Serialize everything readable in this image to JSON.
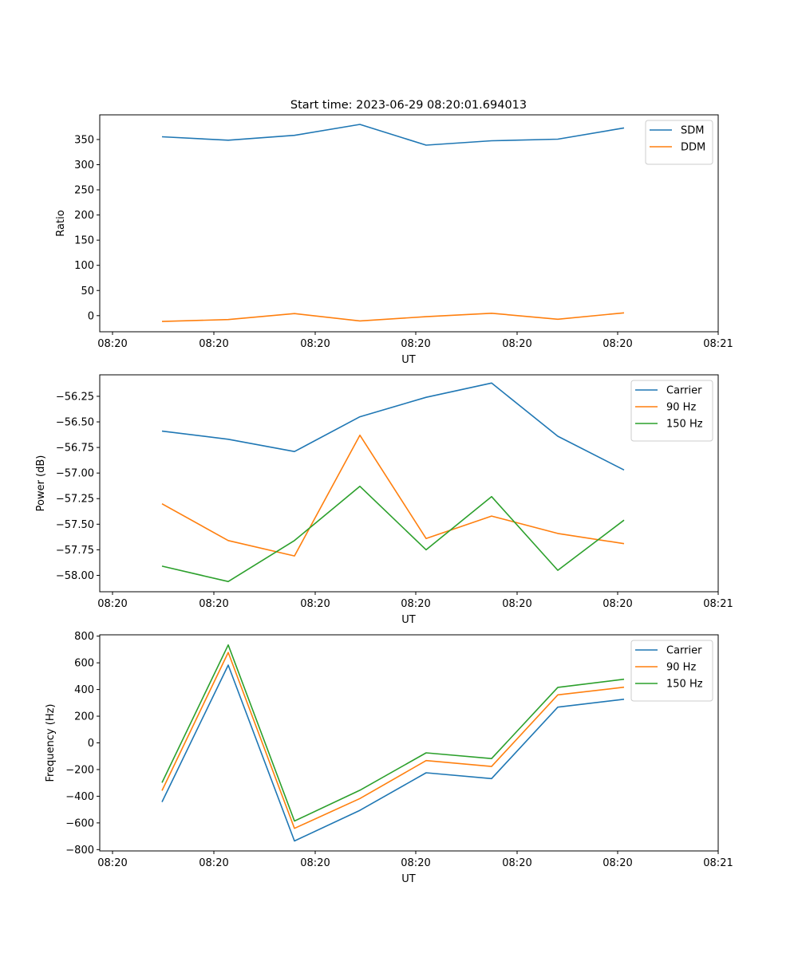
{
  "figure_title": "Start time: 2023-06-29 08:20:01.694013",
  "colors": {
    "blue": "#1f77b4",
    "orange": "#ff7f0e",
    "green": "#2ca02c"
  },
  "chart_data": [
    {
      "type": "line",
      "title": "Start time: 2023-06-29 08:20:01.694013",
      "xlabel": "UT",
      "ylabel": "Ratio",
      "x_tick_labels": [
        "08:20",
        "08:20",
        "08:20",
        "08:20",
        "08:20",
        "08:20",
        "08:21"
      ],
      "y_ticks": [
        0,
        50,
        100,
        150,
        200,
        250,
        300,
        350
      ],
      "ylim": [
        -32,
        399
      ],
      "grid": false,
      "legend_position": "top-right",
      "series": [
        {
          "name": "SDM",
          "color": "#1f77b4",
          "values": [
            355.5,
            348.6,
            358.3,
            380.0,
            338.8,
            347.5,
            350.6,
            373.0
          ]
        },
        {
          "name": "DDM",
          "color": "#ff7f0e",
          "values": [
            -11.6,
            -7.8,
            4.1,
            -10.4,
            -2.1,
            4.7,
            -7.2,
            5.5
          ]
        }
      ]
    },
    {
      "type": "line",
      "title": "",
      "xlabel": "UT",
      "ylabel": "Power (dB)",
      "x_tick_labels": [
        "08:20",
        "08:20",
        "08:20",
        "08:20",
        "08:20",
        "08:20",
        "08:21"
      ],
      "y_ticks": [
        -58.0,
        -57.75,
        -57.5,
        -57.25,
        -57.0,
        -56.75,
        -56.5,
        -56.25
      ],
      "y_tick_labels": [
        "−58.00",
        "−57.75",
        "−57.50",
        "−57.25",
        "−57.00",
        "−56.75",
        "−56.50",
        "−56.25"
      ],
      "ylim": [
        -58.16,
        -56.04
      ],
      "grid": false,
      "legend_position": "top-right",
      "series": [
        {
          "name": "Carrier",
          "color": "#1f77b4",
          "values": [
            -56.59,
            -56.67,
            -56.79,
            -56.45,
            -56.26,
            -56.12,
            -56.64,
            -56.97
          ]
        },
        {
          "name": "90 Hz",
          "color": "#ff7f0e",
          "values": [
            -57.3,
            -57.66,
            -57.81,
            -56.63,
            -57.64,
            -57.42,
            -57.59,
            -57.69
          ]
        },
        {
          "name": "150 Hz",
          "color": "#2ca02c",
          "values": [
            -57.91,
            -58.06,
            -57.66,
            -57.13,
            -57.75,
            -57.23,
            -57.95,
            -57.46
          ]
        }
      ]
    },
    {
      "type": "line",
      "title": "",
      "xlabel": "UT",
      "ylabel": "Frequency (Hz)",
      "x_tick_labels": [
        "08:20",
        "08:20",
        "08:20",
        "08:20",
        "08:20",
        "08:20",
        "08:21"
      ],
      "y_ticks": [
        -800,
        -600,
        -400,
        -200,
        0,
        200,
        400,
        600,
        800
      ],
      "y_tick_labels": [
        "−800",
        "−600",
        "−400",
        "−200",
        "0",
        "200",
        "400",
        "600",
        "800"
      ],
      "ylim": [
        -810,
        810
      ],
      "grid": false,
      "legend_position": "top-right",
      "series": [
        {
          "name": "Carrier",
          "color": "#1f77b4",
          "values": [
            -443,
            583,
            -735,
            -506,
            -224,
            -268,
            268,
            327
          ]
        },
        {
          "name": "90 Hz",
          "color": "#ff7f0e",
          "values": [
            -358,
            678,
            -641,
            -417,
            -133,
            -177,
            360,
            417
          ]
        },
        {
          "name": "150 Hz",
          "color": "#2ca02c",
          "values": [
            -298,
            734,
            -586,
            -355,
            -75,
            -118,
            416,
            477
          ]
        }
      ]
    }
  ]
}
